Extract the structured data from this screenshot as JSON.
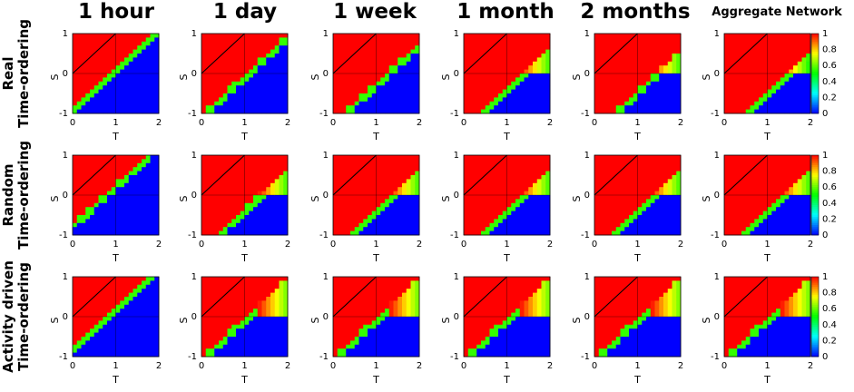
{
  "figure": {
    "columns": [
      "1 hour",
      "1 day",
      "1 week",
      "1 month",
      "2 months",
      "Aggregate Network"
    ],
    "rows": [
      [
        "Real",
        "Time-ordering"
      ],
      [
        "Random",
        "Time-ordering"
      ],
      [
        "Activity driven",
        "Time-ordering"
      ]
    ]
  },
  "chart_data": {
    "type": "heatmap",
    "xlabel": "T",
    "ylabel": "S",
    "xlim": [
      0,
      2
    ],
    "ylim": [
      -1,
      1
    ],
    "xticks": [
      "0",
      "1",
      "2"
    ],
    "yticks": [
      "1",
      "0",
      "-1"
    ],
    "colorbar_ticks": [
      "1",
      "0.8",
      "0.6",
      "0.4",
      "0.2",
      "0"
    ],
    "colorscale": [
      "#0000ff",
      "#00ffff",
      "#00ff00",
      "#ffff00",
      "#ff0000"
    ],
    "diagonal_line": {
      "from": [
        0,
        0
      ],
      "to": [
        1,
        1
      ],
      "color": "#000000"
    },
    "panels": [
      [
        {
          "column": "1 hour",
          "boundary_offset": 0.05,
          "plateau_level": 0.0
        },
        {
          "column": "1 day",
          "boundary_offset": -0.1,
          "plateau_level": 0.0
        },
        {
          "column": "1 week",
          "boundary_offset": -0.3,
          "plateau_level": 0.0
        },
        {
          "column": "1 month",
          "boundary_offset": -0.45,
          "plateau_level": 0.55
        },
        {
          "column": "2 months",
          "boundary_offset": -0.5,
          "plateau_level": 0.55
        },
        {
          "column": "Aggregate Network",
          "boundary_offset": -0.55,
          "plateau_level": 0.5
        }
      ],
      [
        {
          "column": "1 hour",
          "boundary_offset": 0.2,
          "plateau_level": 0.0
        },
        {
          "column": "1 day",
          "boundary_offset": -0.4,
          "plateau_level": 0.55
        },
        {
          "column": "1 week",
          "boundary_offset": -0.45,
          "plateau_level": 0.55
        },
        {
          "column": "1 month",
          "boundary_offset": -0.45,
          "plateau_level": 0.55
        },
        {
          "column": "2 months",
          "boundary_offset": -0.45,
          "plateau_level": 0.55
        },
        {
          "column": "Aggregate Network",
          "boundary_offset": -0.45,
          "plateau_level": 0.55
        }
      ],
      [
        {
          "column": "1 hour",
          "boundary_offset": 0.15,
          "plateau_level": 0.0
        },
        {
          "column": "1 day",
          "boundary_offset": -0.1,
          "plateau_level": 0.6
        },
        {
          "column": "1 week",
          "boundary_offset": -0.1,
          "plateau_level": 0.6
        },
        {
          "column": "1 month",
          "boundary_offset": -0.1,
          "plateau_level": 0.6
        },
        {
          "column": "2 months",
          "boundary_offset": -0.1,
          "plateau_level": 0.6
        },
        {
          "column": "Aggregate Network",
          "boundary_offset": -0.1,
          "plateau_level": 0.6
        }
      ]
    ]
  }
}
